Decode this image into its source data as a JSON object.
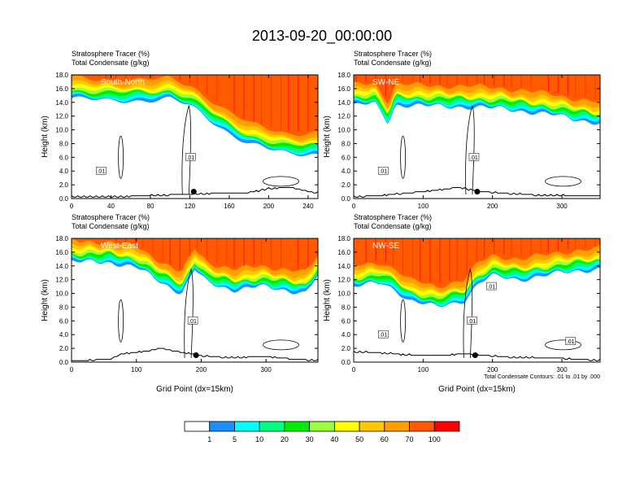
{
  "title": "2013-09-20_00:00:00",
  "panel_header": {
    "line1_label": "Stratosphere Tracer",
    "line1_unit": "(%)",
    "line2_label": "Total Condensate",
    "line2_unit": "(g/kg)"
  },
  "ylabel": "Height (km)",
  "xlabel": "Grid Point (dx=15km)",
  "contour_note": "Total Condensate Contours: .01 to .01 by .000",
  "colorbar": {
    "levels": [
      "1",
      "5",
      "10",
      "20",
      "30",
      "40",
      "50",
      "60",
      "70",
      "100"
    ],
    "colors": [
      "#ffffff",
      "#1e90ff",
      "#00ffff",
      "#00ff7f",
      "#00ee00",
      "#9aff3c",
      "#ffff00",
      "#ffc800",
      "#ff9f00",
      "#ff5a00",
      "#ff0000"
    ]
  },
  "chart_data": [
    {
      "type": "contour-cross-section",
      "name": "South-North",
      "xlim": [
        0,
        250
      ],
      "xticks": [
        0,
        40,
        80,
        120,
        160,
        200,
        240
      ],
      "ylim": [
        0,
        18
      ],
      "yticks": [
        "0.0",
        "2.0",
        "4.0",
        "6.0",
        "8.0",
        "10.0",
        "12.0",
        "14.0",
        "16.0",
        "18.0"
      ],
      "tracer_base_km": [
        [
          0,
          14.6
        ],
        [
          40,
          14.2
        ],
        [
          80,
          14.3
        ],
        [
          100,
          14.5
        ],
        [
          120,
          13.5
        ],
        [
          140,
          11.5
        ],
        [
          160,
          9.5
        ],
        [
          180,
          8.0
        ],
        [
          200,
          7.2
        ],
        [
          220,
          6.5
        ],
        [
          250,
          6.5
        ]
      ],
      "terrain_km": [
        [
          0,
          0.2
        ],
        [
          60,
          0.3
        ],
        [
          100,
          0.5
        ],
        [
          140,
          0.7
        ],
        [
          180,
          0.8
        ],
        [
          200,
          1.4
        ],
        [
          220,
          1.6
        ],
        [
          240,
          1.0
        ],
        [
          250,
          0.8
        ]
      ],
      "marker_x": 124,
      "contour_labels": [
        ".01",
        ".01"
      ]
    },
    {
      "type": "contour-cross-section",
      "name": "SW-NE",
      "xlim": [
        0,
        355
      ],
      "xticks": [
        0,
        100,
        200,
        300
      ],
      "ylim": [
        0,
        18
      ],
      "yticks": [
        "0.0",
        "2.0",
        "4.0",
        "6.0",
        "8.0",
        "10.0",
        "12.0",
        "14.0",
        "16.0",
        "18.0"
      ],
      "tracer_base_km": [
        [
          0,
          13.6
        ],
        [
          30,
          13.8
        ],
        [
          50,
          11.0
        ],
        [
          60,
          13.6
        ],
        [
          80,
          13.6
        ],
        [
          120,
          13.4
        ],
        [
          180,
          13.3
        ],
        [
          220,
          13.0
        ],
        [
          280,
          12.3
        ],
        [
          320,
          11.5
        ],
        [
          355,
          11.0
        ]
      ],
      "terrain_km": [
        [
          0,
          0.2
        ],
        [
          40,
          0.4
        ],
        [
          80,
          0.8
        ],
        [
          120,
          1.2
        ],
        [
          150,
          1.6
        ],
        [
          180,
          1.0
        ],
        [
          220,
          0.7
        ],
        [
          260,
          0.5
        ],
        [
          355,
          0.3
        ]
      ],
      "marker_x": 178,
      "contour_labels": [
        ".01",
        ".01"
      ]
    },
    {
      "type": "contour-cross-section",
      "name": "West-East",
      "xlim": [
        0,
        380
      ],
      "xticks": [
        0,
        100,
        200,
        300
      ],
      "ylim": [
        0,
        18
      ],
      "yticks": [
        "0.0",
        "2.0",
        "4.0",
        "6.0",
        "8.0",
        "10.0",
        "12.0",
        "14.0",
        "16.0",
        "18.0"
      ],
      "tracer_base_km": [
        [
          0,
          14.6
        ],
        [
          60,
          14.5
        ],
        [
          100,
          13.8
        ],
        [
          140,
          11.5
        ],
        [
          170,
          10.0
        ],
        [
          190,
          13.5
        ],
        [
          210,
          11.5
        ],
        [
          250,
          10.5
        ],
        [
          290,
          11.0
        ],
        [
          330,
          10.5
        ],
        [
          360,
          10.0
        ],
        [
          380,
          12.5
        ]
      ],
      "terrain_km": [
        [
          0,
          0.1
        ],
        [
          60,
          0.4
        ],
        [
          80,
          1.2
        ],
        [
          110,
          1.5
        ],
        [
          140,
          2.0
        ],
        [
          170,
          1.4
        ],
        [
          200,
          0.9
        ],
        [
          240,
          0.6
        ],
        [
          300,
          0.8
        ],
        [
          340,
          0.4
        ],
        [
          380,
          0.2
        ]
      ],
      "marker_x": 192,
      "contour_labels": [
        ".01"
      ]
    },
    {
      "type": "contour-cross-section",
      "name": "NW-SE",
      "xlim": [
        0,
        355
      ],
      "xticks": [
        0,
        100,
        200,
        300
      ],
      "ylim": [
        0,
        18
      ],
      "yticks": [
        "0.0",
        "2.0",
        "4.0",
        "6.0",
        "8.0",
        "10.0",
        "12.0",
        "14.0",
        "16.0",
        "18.0"
      ],
      "tracer_base_km": [
        [
          0,
          11.0
        ],
        [
          40,
          11.5
        ],
        [
          60,
          10.5
        ],
        [
          80,
          9.0
        ],
        [
          120,
          8.0
        ],
        [
          160,
          9.0
        ],
        [
          180,
          11.5
        ],
        [
          200,
          12.5
        ],
        [
          240,
          12.0
        ],
        [
          300,
          13.0
        ],
        [
          355,
          13.6
        ]
      ],
      "terrain_km": [
        [
          0,
          1.5
        ],
        [
          40,
          1.3
        ],
        [
          80,
          1.0
        ],
        [
          120,
          0.9
        ],
        [
          160,
          1.2
        ],
        [
          180,
          1.0
        ],
        [
          220,
          0.7
        ],
        [
          260,
          0.6
        ],
        [
          300,
          0.5
        ],
        [
          355,
          0.2
        ]
      ],
      "marker_x": 175,
      "contour_labels": [
        ".01",
        ".01",
        ".01",
        ".01"
      ]
    }
  ]
}
